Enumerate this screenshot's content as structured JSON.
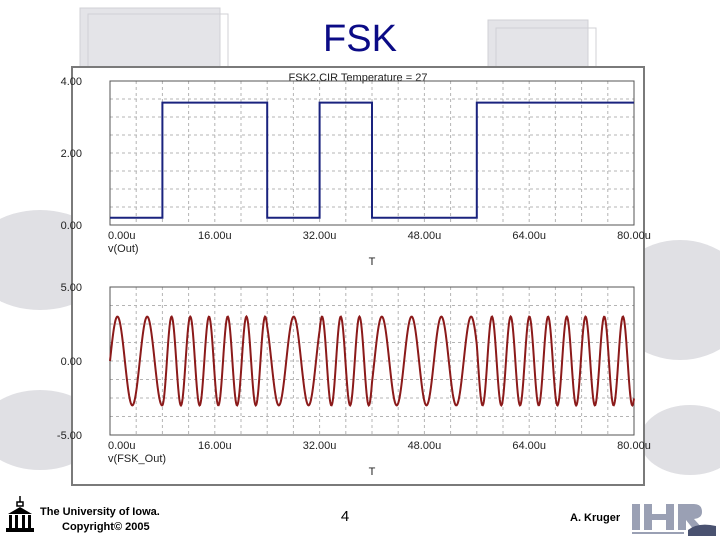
{
  "slide": {
    "title": "FSK",
    "footer": {
      "institution": "The University of Iowa.",
      "copyright": "Copyright© 2005",
      "page_number": "4",
      "author": "A. Kruger"
    }
  },
  "colors": {
    "title": "#0b0b86",
    "out_trace": "#1a237e",
    "fsk_trace": "#8b1a1a",
    "grid": "#b4b4b4",
    "background_shapes": "#dcdce0"
  },
  "chart_data": [
    {
      "type": "line",
      "title": "FSK2.CIR Temperature = 27",
      "xlabel": "T",
      "ylabel": "v(Out)",
      "xlim": [
        0,
        80
      ],
      "ylim": [
        0,
        4
      ],
      "x_ticks": [
        "0.00u",
        "16.00u",
        "32.00u",
        "48.00u",
        "64.00u",
        "80.00u"
      ],
      "y_ticks": [
        "4.00",
        "2.00",
        "0.00"
      ],
      "grid": true,
      "series": [
        {
          "name": "v(Out)",
          "x": [
            0,
            8,
            8,
            24,
            24,
            32,
            32,
            40,
            40,
            48,
            48,
            56,
            56,
            64,
            64,
            80
          ],
          "y": [
            0.2,
            0.2,
            3.4,
            3.4,
            0.2,
            0.2,
            3.4,
            3.4,
            0.2,
            0.2,
            0.2,
            0.2,
            3.4,
            3.4,
            3.4,
            3.4
          ]
        }
      ]
    },
    {
      "type": "line",
      "title": "",
      "xlabel": "T",
      "ylabel": "v(FSK_Out)",
      "xlim": [
        0,
        80
      ],
      "ylim": [
        -5,
        5
      ],
      "x_ticks": [
        "0.00u",
        "16.00u",
        "32.00u",
        "48.00u",
        "64.00u",
        "80.00u"
      ],
      "y_ticks": [
        "5.00",
        "0.00",
        "-5.00"
      ],
      "grid": true,
      "series": [
        {
          "name": "v(FSK_Out)",
          "amplitude": 3.0,
          "segments": [
            {
              "x_start": 0,
              "x_end": 8,
              "cycles_per_us": 0.22
            },
            {
              "x_start": 8,
              "x_end": 24,
              "cycles_per_us": 0.35
            },
            {
              "x_start": 24,
              "x_end": 32,
              "cycles_per_us": 0.22
            },
            {
              "x_start": 32,
              "x_end": 40,
              "cycles_per_us": 0.35
            },
            {
              "x_start": 40,
              "x_end": 56,
              "cycles_per_us": 0.22
            },
            {
              "x_start": 56,
              "x_end": 80,
              "cycles_per_us": 0.35
            }
          ]
        }
      ]
    }
  ]
}
